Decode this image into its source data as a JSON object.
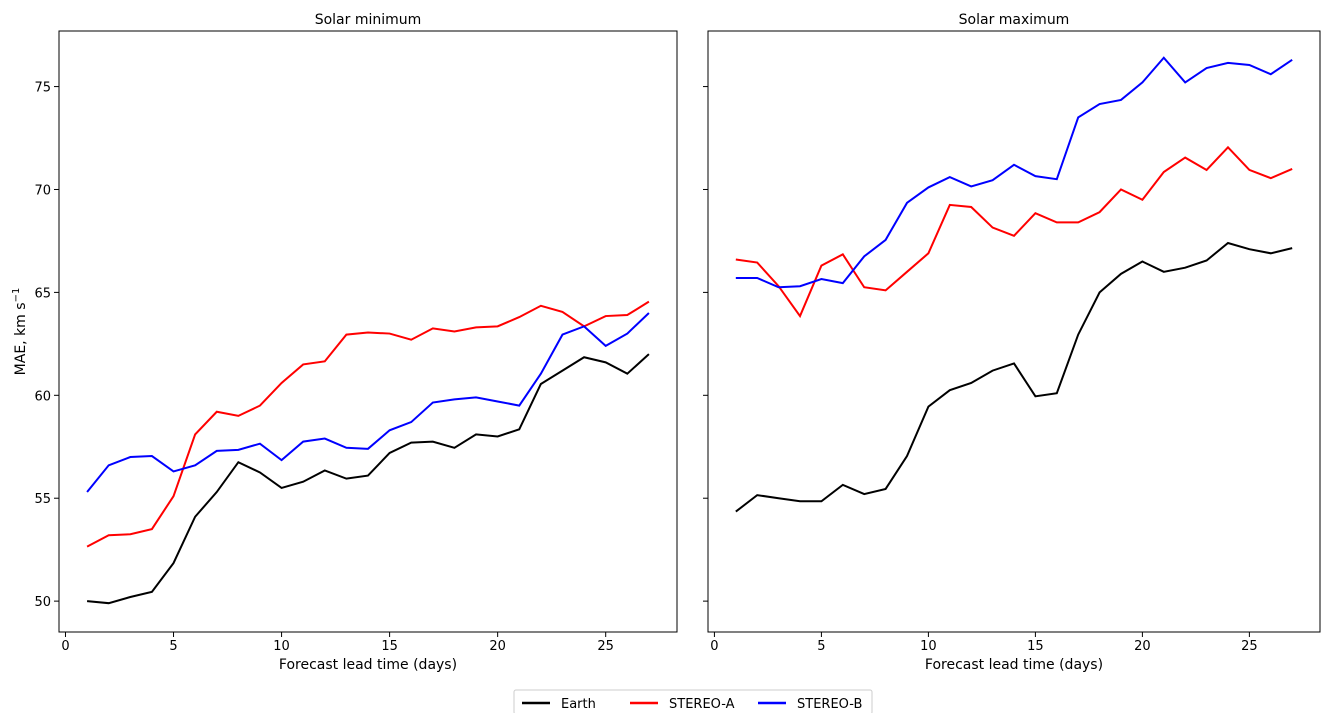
{
  "chart_data": [
    {
      "type": "line",
      "title": "Solar minimum",
      "x_label": "Forecast lead time (days)",
      "y_label": {
        "text": "MAE, km s",
        "superscript": "−1"
      },
      "x": [
        1,
        2,
        3,
        4,
        5,
        6,
        7,
        8,
        9,
        10,
        11,
        12,
        13,
        14,
        15,
        16,
        17,
        18,
        19,
        20,
        21,
        22,
        23,
        24,
        25,
        26,
        27
      ],
      "series": [
        {
          "name": "Earth",
          "color": "#000000",
          "values": [
            50.0,
            49.9,
            50.2,
            50.45,
            51.85,
            54.1,
            55.3,
            56.75,
            56.25,
            55.5,
            55.8,
            56.35,
            55.95,
            56.1,
            57.2,
            57.7,
            57.75,
            57.45,
            58.1,
            58.0,
            58.35,
            60.55,
            61.2,
            61.85,
            61.6,
            61.05,
            62.0
          ]
        },
        {
          "name": "STEREO-A",
          "color": "#ff0000",
          "values": [
            52.65,
            53.2,
            53.25,
            53.5,
            55.1,
            58.1,
            59.2,
            59.0,
            59.5,
            60.6,
            61.5,
            61.65,
            62.95,
            63.05,
            63.0,
            62.7,
            63.25,
            63.1,
            63.3,
            63.35,
            63.8,
            64.35,
            64.05,
            63.35,
            63.85,
            63.9,
            64.55
          ]
        },
        {
          "name": "STEREO-B",
          "color": "#0000ff",
          "values": [
            55.3,
            56.6,
            57.0,
            57.05,
            56.3,
            56.6,
            57.3,
            57.35,
            57.65,
            56.85,
            57.75,
            57.9,
            57.45,
            57.4,
            58.3,
            58.7,
            59.65,
            59.8,
            59.9,
            59.7,
            59.5,
            61.05,
            62.95,
            63.35,
            62.4,
            63.0,
            64.0
          ]
        }
      ],
      "xlim": [
        -0.3,
        28.3
      ],
      "xticks": [
        0,
        5,
        10,
        15,
        20,
        25
      ],
      "ylim": [
        48.5,
        77.7
      ],
      "yticks": [
        50,
        55,
        60,
        65,
        70,
        75
      ],
      "ytick_labels": true
    },
    {
      "type": "line",
      "title": "Solar maximum",
      "x_label": "Forecast lead time (days)",
      "x": [
        1,
        2,
        3,
        4,
        5,
        6,
        7,
        8,
        9,
        10,
        11,
        12,
        13,
        14,
        15,
        16,
        17,
        18,
        19,
        20,
        21,
        22,
        23,
        24,
        25,
        26,
        27
      ],
      "series": [
        {
          "name": "Earth",
          "color": "#000000",
          "values": [
            54.35,
            55.15,
            55.0,
            54.85,
            54.85,
            55.65,
            55.2,
            55.45,
            57.05,
            59.45,
            60.25,
            60.6,
            61.2,
            61.55,
            59.95,
            60.1,
            62.95,
            65.0,
            65.9,
            66.5,
            66.0,
            66.2,
            66.55,
            67.4,
            67.1,
            66.9,
            67.15
          ]
        },
        {
          "name": "STEREO-A",
          "color": "#ff0000",
          "values": [
            66.6,
            66.45,
            65.3,
            63.85,
            66.3,
            66.85,
            65.25,
            65.1,
            66.0,
            66.9,
            69.25,
            69.15,
            68.15,
            67.75,
            68.85,
            68.4,
            68.4,
            68.9,
            70.0,
            69.5,
            70.85,
            71.55,
            70.95,
            72.05,
            70.95,
            70.55,
            71.0
          ]
        },
        {
          "name": "STEREO-B",
          "color": "#0000ff",
          "values": [
            65.7,
            65.7,
            65.25,
            65.3,
            65.65,
            65.45,
            66.75,
            67.55,
            69.35,
            70.1,
            70.6,
            70.15,
            70.45,
            71.2,
            70.65,
            70.5,
            73.5,
            74.15,
            74.35,
            75.2,
            76.4,
            75.2,
            75.9,
            76.15,
            76.05,
            75.6,
            76.3
          ]
        }
      ],
      "xlim": [
        -0.3,
        28.3
      ],
      "xticks": [
        0,
        5,
        10,
        15,
        20,
        25
      ],
      "ylim": [
        48.5,
        77.7
      ],
      "yticks": [
        50,
        55,
        60,
        65,
        70,
        75
      ],
      "ytick_labels": false
    }
  ]
}
